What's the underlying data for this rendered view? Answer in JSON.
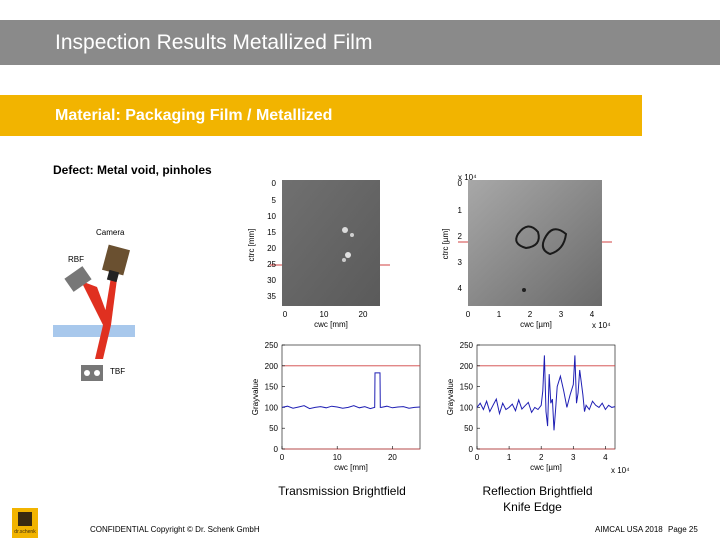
{
  "header": {
    "title": "Inspection Results Metallized Film",
    "material": "Material:  Packaging Film / Metallized"
  },
  "defect": "Defect:  Metal void, pinholes",
  "schematic": {
    "camera_label": "Camera",
    "rbf_label": "RBF",
    "tbf_label": "TBF"
  },
  "transmission_image": {
    "y_label": "ctrc [mm]",
    "y_ticks": [
      "0",
      "5",
      "10",
      "15",
      "20",
      "25",
      "30",
      "35"
    ],
    "x_label": "cwc [mm]",
    "x_ticks": [
      "0",
      "10",
      "20"
    ]
  },
  "reflection_image": {
    "y_label": "ctrc [µm]",
    "y_ticks": [
      "0",
      "1",
      "2",
      "3",
      "4"
    ],
    "y_exponent": "x 10⁴",
    "x_label": "cwc [µm]",
    "x_ticks": [
      "0",
      "1",
      "2",
      "3",
      "4"
    ],
    "x_exponent": "x 10⁴"
  },
  "chart_data": [
    {
      "type": "line",
      "title": "",
      "xlabel": "cwc [mm]",
      "ylabel": "Grayvalue",
      "xlim": [
        0,
        25
      ],
      "ylim": [
        0,
        250
      ],
      "x_ticks": [
        0,
        10,
        20
      ],
      "y_ticks": [
        0,
        50,
        100,
        150,
        200,
        250
      ],
      "grid": false,
      "series": [
        {
          "x": [
            0,
            1,
            2,
            3,
            4,
            5,
            6,
            7,
            8,
            9,
            10,
            11,
            12,
            13,
            14,
            15,
            16,
            17,
            18,
            19,
            20,
            21,
            22,
            23,
            24,
            25
          ],
          "values": [
            100,
            103,
            98,
            101,
            104,
            97,
            100,
            102,
            99,
            103,
            101,
            98,
            100,
            104,
            99,
            102,
            97,
            101,
            100,
            103,
            99,
            101,
            102,
            98,
            100,
            101
          ]
        }
      ],
      "spike": {
        "x_start": 16.8,
        "x_end": 17.8,
        "value": 183
      },
      "reference_lines": [
        200,
        0
      ]
    },
    {
      "type": "line",
      "title": "",
      "xlabel": "cwc [µm]",
      "ylabel": "Grayvalue",
      "xlim": [
        0,
        4.3
      ],
      "ylim": [
        0,
        250
      ],
      "x_ticks": [
        0,
        1,
        2,
        3,
        4
      ],
      "x_exponent": "x 10⁴",
      "y_ticks": [
        0,
        50,
        100,
        150,
        200,
        250
      ],
      "grid": false,
      "series": [
        {
          "x": [
            0,
            0.1,
            0.2,
            0.3,
            0.4,
            0.5,
            0.6,
            0.7,
            0.8,
            0.9,
            1.0,
            1.1,
            1.2,
            1.3,
            1.4,
            1.5,
            1.6,
            1.7,
            1.8,
            1.9,
            2.0,
            2.05,
            2.1,
            2.15,
            2.2,
            2.25,
            2.3,
            2.35,
            2.4,
            2.45,
            2.5,
            2.6,
            2.7,
            2.8,
            2.9,
            3.0,
            3.05,
            3.1,
            3.15,
            3.2,
            3.25,
            3.3,
            3.35,
            3.4,
            3.5,
            3.6,
            3.7,
            3.8,
            3.9,
            4.0,
            4.1,
            4.2,
            4.3
          ],
          "values": [
            100,
            110,
            95,
            115,
            90,
            105,
            120,
            85,
            110,
            95,
            100,
            108,
            92,
            118,
            96,
            104,
            112,
            88,
            100,
            95,
            105,
            140,
            225,
            90,
            55,
            180,
            110,
            120,
            45,
            95,
            150,
            175,
            140,
            100,
            130,
            155,
            225,
            110,
            135,
            190,
            160,
            130,
            90,
            105,
            95,
            115,
            105,
            100,
            110,
            95,
            105,
            100,
            102
          ]
        }
      ],
      "reference_lines": [
        200,
        0
      ]
    }
  ],
  "captions": {
    "transmission": "Transmission Brightfield",
    "reflection_line1": "Reflection Brightfield",
    "reflection_line2": "Knife Edge"
  },
  "footer": {
    "confidential": "CONFIDENTIAL  Copyright © Dr. Schenk GmbH",
    "event": "AIMCAL USA 2018",
    "page": "Page 25",
    "logo_text": "dr.schenk"
  },
  "colors": {
    "title_bar": "#8a8a8a",
    "material_bar": "#f2b400",
    "series_line": "#1f1fb4",
    "reference_line": "#d04040",
    "beam": "#e03020",
    "film": "#a8c8ec"
  }
}
